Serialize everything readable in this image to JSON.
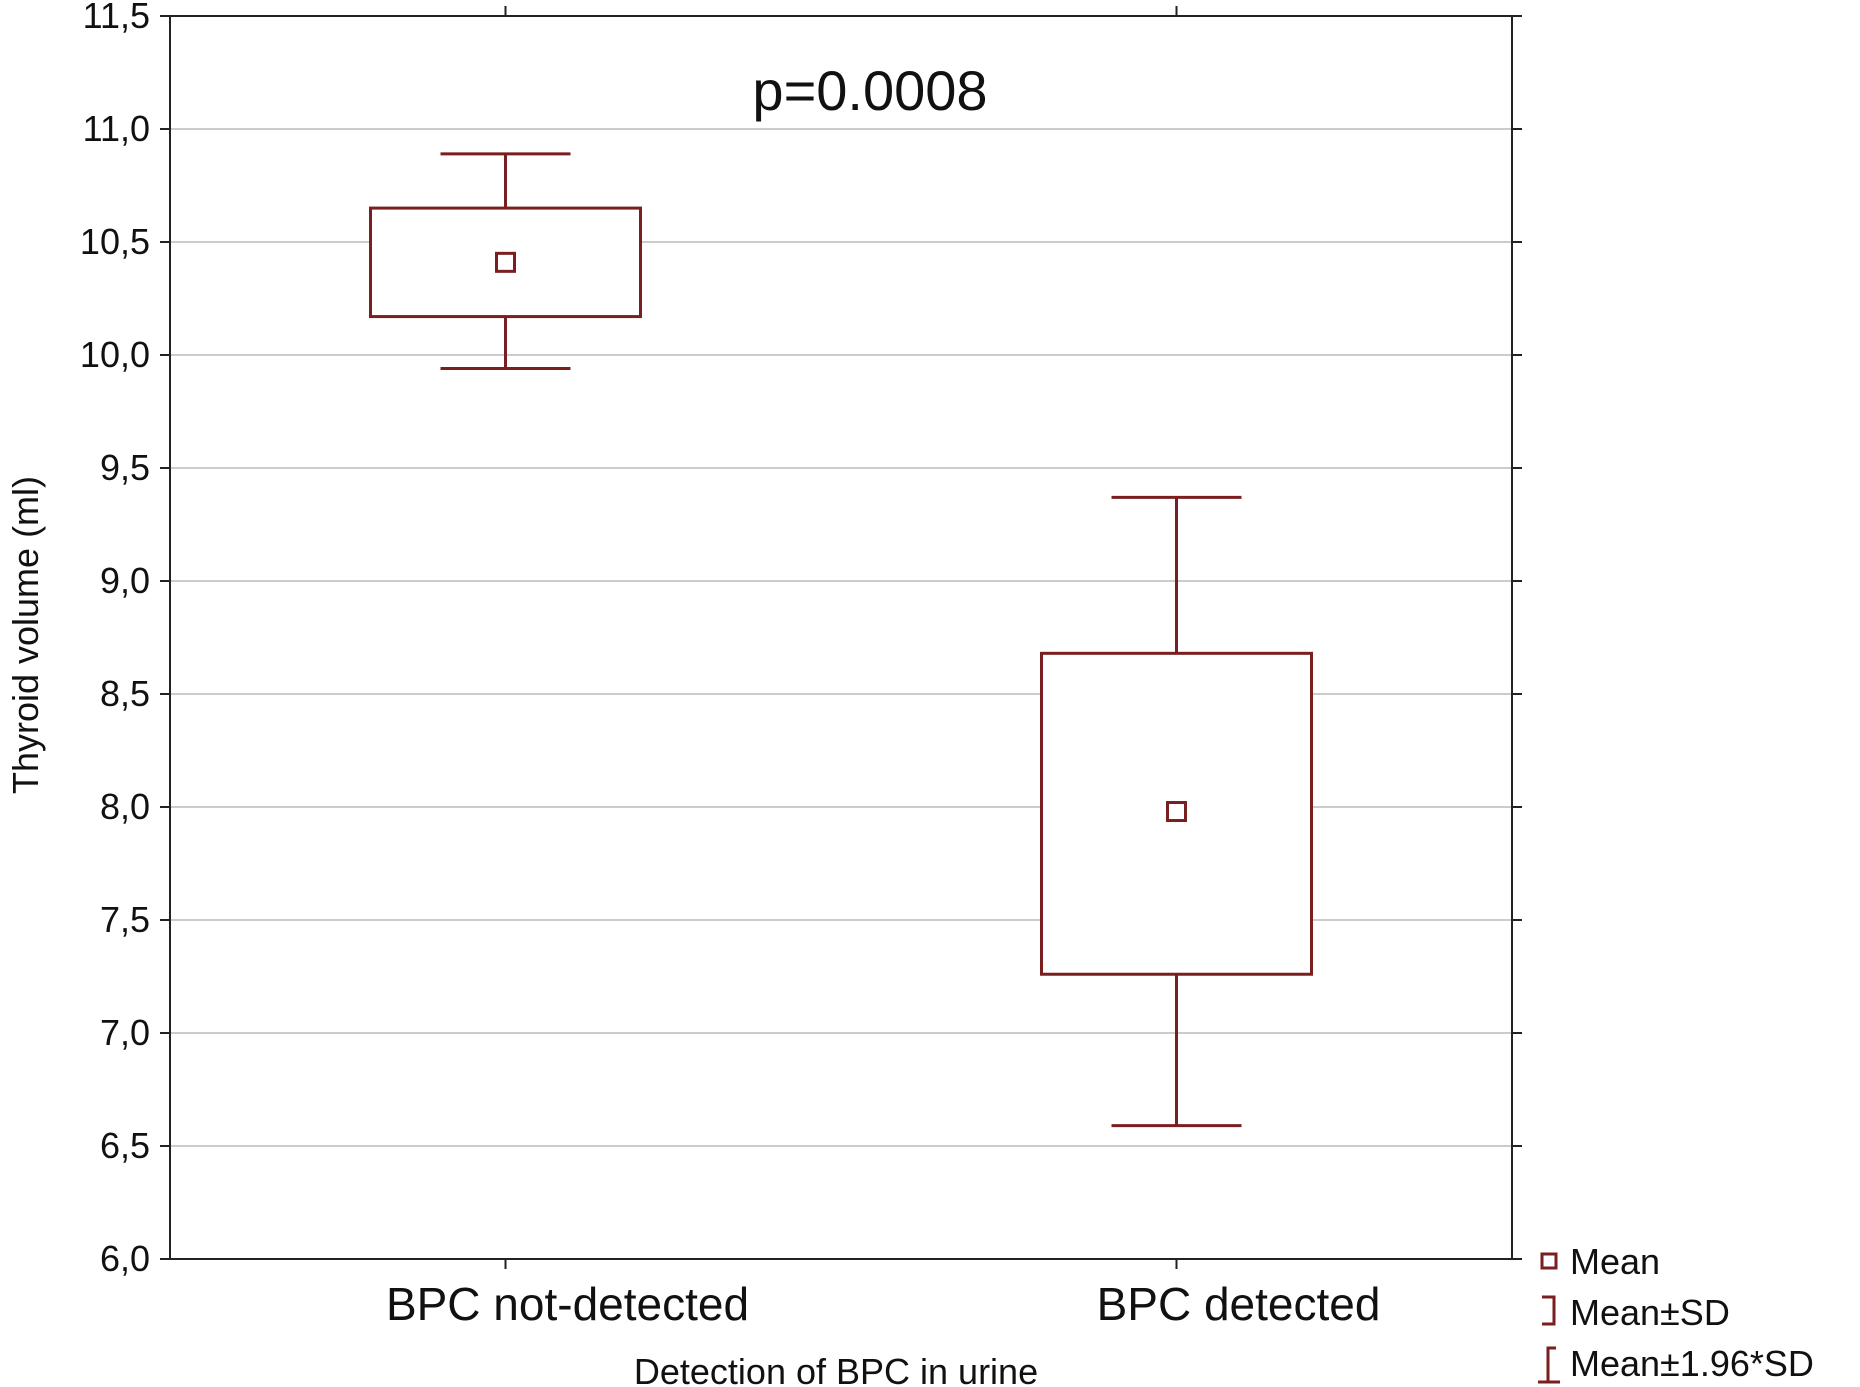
{
  "chart_data": {
    "type": "box",
    "y_axis": {
      "label": "Thyroid volume (ml)",
      "ylim": [
        6.0,
        11.5
      ],
      "ticks": [
        6.0,
        6.5,
        7.0,
        7.5,
        8.0,
        8.5,
        9.0,
        9.5,
        10.0,
        10.5,
        11.0,
        11.5
      ],
      "tick_labels": [
        "6,0",
        "6,5",
        "7,0",
        "7,5",
        "8,0",
        "8,5",
        "9,0",
        "9,5",
        "10,0",
        "10,5",
        "11,0",
        "11,5"
      ]
    },
    "x_axis": {
      "label": "Detection of BPC in urine",
      "categories": [
        "BPC not-detected",
        "BPC detected"
      ]
    },
    "groups": [
      {
        "category": "BPC not-detected",
        "mean": 10.41,
        "mean_minus_sd": 10.17,
        "mean_plus_sd": 10.65,
        "mean_minus_1_96sd": 9.94,
        "mean_plus_1_96sd": 10.89
      },
      {
        "category": "BPC detected",
        "mean": 7.98,
        "mean_minus_sd": 7.26,
        "mean_plus_sd": 8.68,
        "mean_minus_1_96sd": 6.59,
        "mean_plus_1_96sd": 9.37
      }
    ],
    "annotation": "p=0.0008",
    "legend": {
      "position": "bottom-right",
      "items": [
        "Mean",
        "Mean±SD",
        "Mean±1.96*SD"
      ]
    },
    "grid": {
      "horizontal": true,
      "vertical": false
    },
    "colors": {
      "box": "#7a1f1f",
      "grid": "#cccccc",
      "axis": "#222222"
    }
  }
}
